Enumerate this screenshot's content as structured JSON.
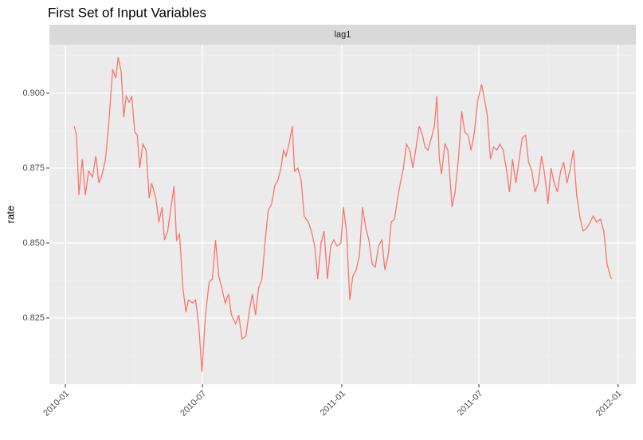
{
  "chart_data": {
    "type": "line",
    "title": "First Set of Input Variables",
    "strip": "lag1",
    "y_label": "rate",
    "color": "#f8766d",
    "grid": true,
    "xlim": [
      2009.942,
      2012.064
    ],
    "xticks": [
      {
        "value": 2010.0,
        "label": "2010-01"
      },
      {
        "value": 2010.496,
        "label": "2010-07"
      },
      {
        "value": 2011.0,
        "label": "2011-01"
      },
      {
        "value": 2011.496,
        "label": "2011-07"
      },
      {
        "value": 2012.0,
        "label": "2012-01"
      }
    ],
    "ylim": [
      0.8029,
      0.9162
    ],
    "yticks": [
      {
        "value": 0.825,
        "label": "0.825"
      },
      {
        "value": 0.85,
        "label": "0.850"
      },
      {
        "value": 0.875,
        "label": "0.875"
      },
      {
        "value": 0.9,
        "label": "0.900"
      }
    ],
    "x": [
      2010.032,
      2010.04,
      2010.049,
      2010.061,
      2010.072,
      2010.084,
      2010.098,
      2010.11,
      2010.121,
      2010.133,
      2010.145,
      2010.156,
      2010.171,
      2010.182,
      2010.191,
      2010.202,
      2010.211,
      2010.22,
      2010.231,
      2010.24,
      2010.251,
      2010.26,
      2010.269,
      2010.28,
      2010.292,
      2010.303,
      2010.312,
      2010.327,
      2010.338,
      2010.35,
      2010.358,
      2010.37,
      2010.382,
      2010.393,
      2010.402,
      2010.413,
      2010.425,
      2010.436,
      2010.445,
      2010.46,
      2010.471,
      2010.483,
      2010.494,
      2010.506,
      2010.52,
      2010.532,
      2010.543,
      2010.555,
      2010.566,
      2010.578,
      2010.59,
      2010.601,
      2010.616,
      2010.627,
      2010.639,
      2010.653,
      2010.665,
      2010.676,
      2010.688,
      2010.699,
      2010.711,
      2010.723,
      2010.734,
      2010.746,
      2010.757,
      2010.769,
      2010.78,
      2010.789,
      2010.798,
      2010.809,
      2010.821,
      2010.829,
      2010.841,
      2010.853,
      2010.864,
      2010.879,
      2010.89,
      2010.902,
      2010.913,
      2010.925,
      2010.936,
      2010.948,
      2010.96,
      2010.971,
      2010.983,
      2010.997,
      2011.006,
      2011.017,
      2011.029,
      2011.04,
      2011.052,
      2011.064,
      2011.075,
      2011.087,
      2011.098,
      2011.11,
      2011.121,
      2011.133,
      2011.145,
      2011.156,
      2011.168,
      2011.179,
      2011.191,
      2011.202,
      2011.214,
      2011.223,
      2011.234,
      2011.246,
      2011.257,
      2011.269,
      2011.28,
      2011.292,
      2011.301,
      2011.312,
      2011.324,
      2011.335,
      2011.344,
      2011.353,
      2011.361,
      2011.373,
      2011.384,
      2011.399,
      2011.41,
      2011.422,
      2011.434,
      2011.445,
      2011.457,
      2011.468,
      2011.48,
      2011.491,
      2011.506,
      2011.514,
      2011.526,
      2011.538,
      2011.549,
      2011.561,
      2011.572,
      2011.584,
      2011.595,
      2011.607,
      2011.618,
      2011.63,
      2011.642,
      2011.653,
      2011.665,
      2011.676,
      2011.688,
      2011.699,
      2011.711,
      2011.723,
      2011.734,
      2011.746,
      2011.757,
      2011.769,
      2011.78,
      2011.792,
      2011.803,
      2011.815,
      2011.827,
      2011.838,
      2011.85,
      2011.861,
      2011.873,
      2011.887,
      2011.899,
      2011.91,
      2011.922,
      2011.936,
      2011.948,
      2011.96,
      2011.971,
      2011.977
    ],
    "values": [
      0.889,
      0.886,
      0.866,
      0.878,
      0.866,
      0.874,
      0.872,
      0.879,
      0.87,
      0.873,
      0.878,
      0.889,
      0.908,
      0.905,
      0.912,
      0.907,
      0.892,
      0.899,
      0.897,
      0.899,
      0.887,
      0.886,
      0.875,
      0.883,
      0.881,
      0.865,
      0.87,
      0.865,
      0.857,
      0.862,
      0.851,
      0.854,
      0.862,
      0.869,
      0.851,
      0.853,
      0.835,
      0.827,
      0.831,
      0.83,
      0.831,
      0.822,
      0.807,
      0.825,
      0.837,
      0.838,
      0.851,
      0.839,
      0.835,
      0.83,
      0.833,
      0.826,
      0.823,
      0.826,
      0.818,
      0.819,
      0.827,
      0.833,
      0.826,
      0.835,
      0.838,
      0.851,
      0.861,
      0.863,
      0.869,
      0.871,
      0.875,
      0.881,
      0.879,
      0.883,
      0.889,
      0.874,
      0.875,
      0.871,
      0.859,
      0.857,
      0.854,
      0.849,
      0.838,
      0.85,
      0.854,
      0.838,
      0.849,
      0.851,
      0.849,
      0.85,
      0.862,
      0.854,
      0.831,
      0.839,
      0.841,
      0.846,
      0.862,
      0.855,
      0.851,
      0.843,
      0.842,
      0.849,
      0.851,
      0.841,
      0.846,
      0.857,
      0.858,
      0.865,
      0.871,
      0.875,
      0.883,
      0.881,
      0.875,
      0.882,
      0.889,
      0.886,
      0.882,
      0.881,
      0.885,
      0.889,
      0.899,
      0.878,
      0.873,
      0.883,
      0.881,
      0.862,
      0.867,
      0.878,
      0.894,
      0.887,
      0.886,
      0.881,
      0.887,
      0.897,
      0.903,
      0.899,
      0.893,
      0.878,
      0.882,
      0.881,
      0.883,
      0.881,
      0.875,
      0.867,
      0.878,
      0.87,
      0.878,
      0.885,
      0.886,
      0.877,
      0.874,
      0.867,
      0.87,
      0.879,
      0.873,
      0.863,
      0.875,
      0.87,
      0.867,
      0.874,
      0.877,
      0.87,
      0.875,
      0.881,
      0.866,
      0.859,
      0.854,
      0.855,
      0.857,
      0.859,
      0.857,
      0.858,
      0.854,
      0.843,
      0.839,
      0.838
    ]
  }
}
